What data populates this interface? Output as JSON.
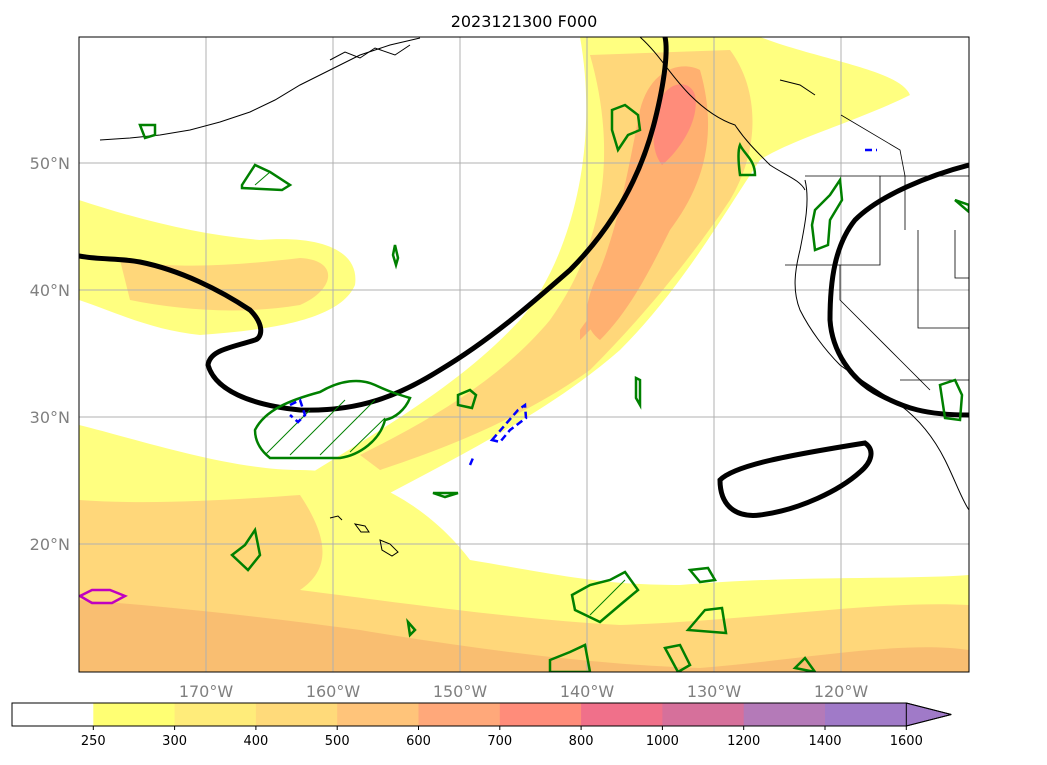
{
  "title": "2023121300 F000",
  "latitude_labels": [
    "50°N",
    "40°N",
    "30°N",
    "20°N"
  ],
  "longitude_labels": [
    "170°W",
    "160°W",
    "150°W",
    "140°W",
    "130°W",
    "120°W"
  ],
  "colorbar": {
    "ticks": [
      "250",
      "300",
      "400",
      "500",
      "600",
      "700",
      "800",
      "1000",
      "1200",
      "1400",
      "1600"
    ],
    "colors": [
      "#ffffff",
      "#ffff73",
      "#ffec7a",
      "#ffda7a",
      "#ffc47a",
      "#ffa87a",
      "#ff8c7a",
      "#f0708a",
      "#d6709b",
      "#b47ab8",
      "#a07ac8"
    ],
    "extend": "max"
  },
  "contour_colors": {
    "jet_axis": "#000000",
    "positive": "#008000",
    "negative": "#0000ff",
    "strong": "#c000c0"
  }
}
